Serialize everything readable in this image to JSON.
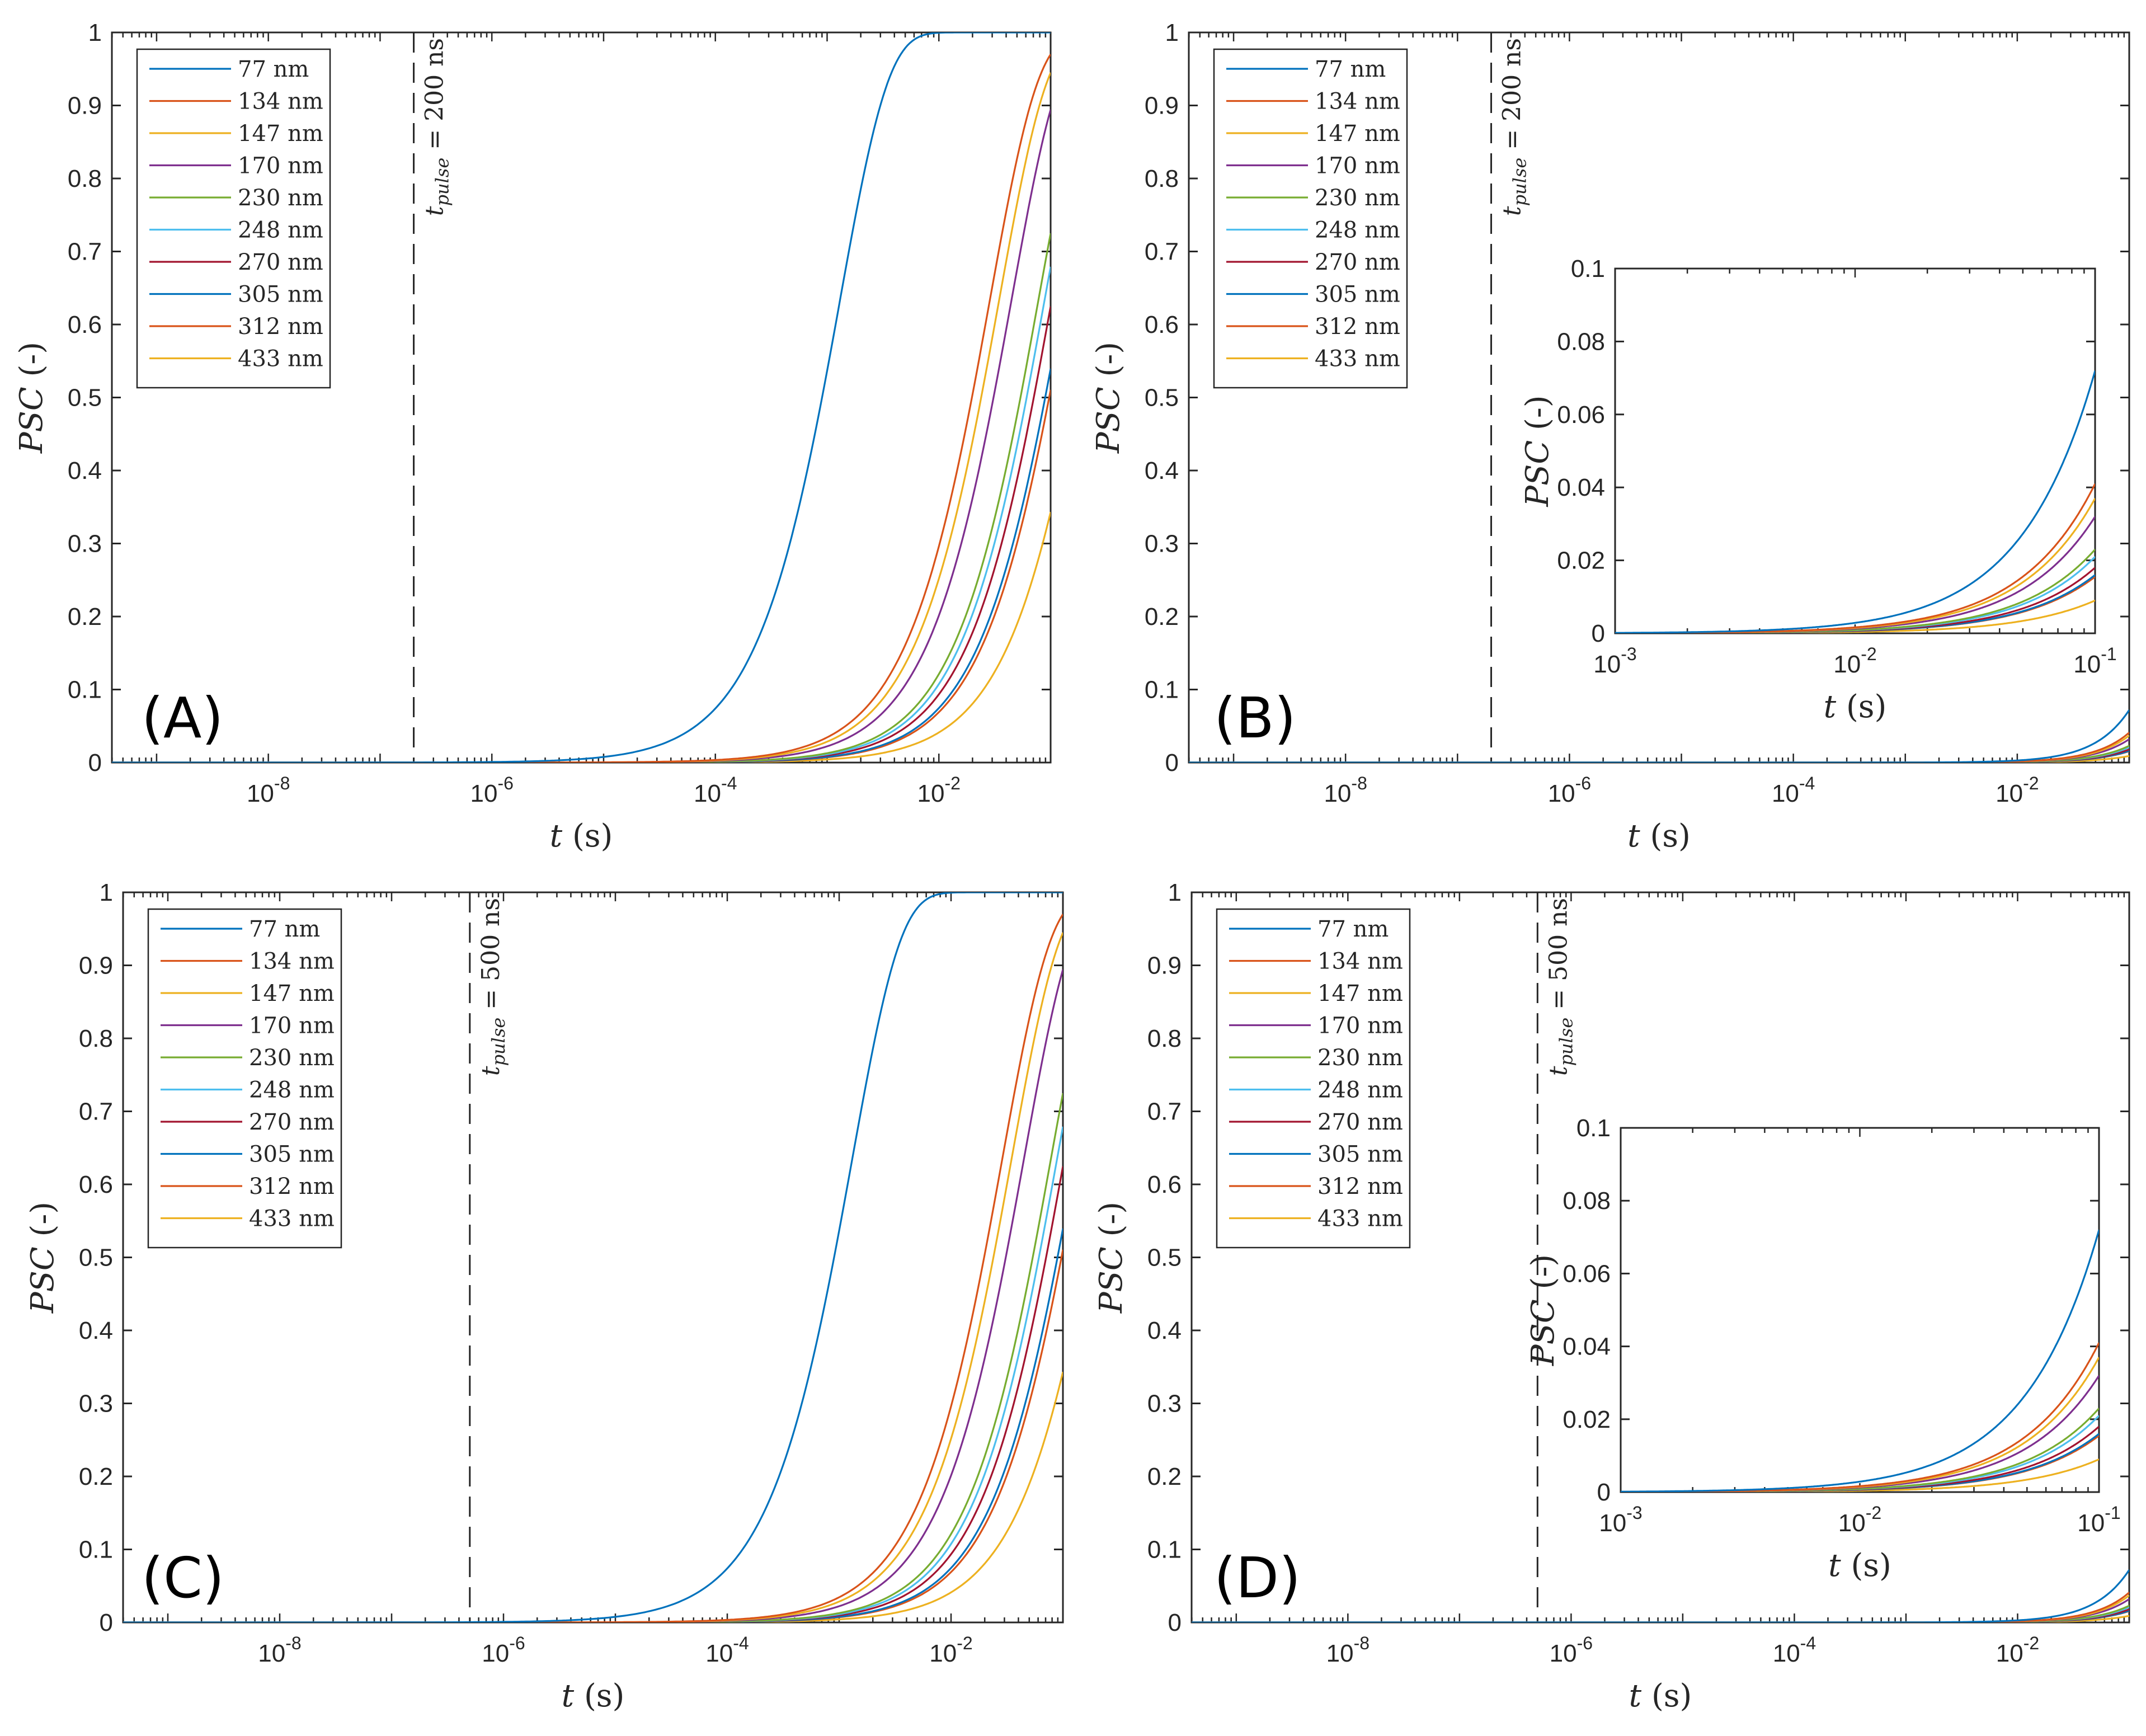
{
  "chart_data": [
    {
      "type": "line",
      "panel": "(A)",
      "xscale": "log",
      "xlim_exp": [
        -9.4,
        -1
      ],
      "ylim": [
        0,
        1
      ],
      "xlabel": "t (s)",
      "ylabel": "PSC (-)",
      "yticks": [
        0,
        0.1,
        0.2,
        0.3,
        0.4,
        0.5,
        0.6,
        0.7,
        0.8,
        0.9,
        1
      ],
      "xtick_exponents": [
        -8,
        -6,
        -4,
        -2
      ],
      "legend_position": "top-left",
      "pulse": {
        "label": "t_pulse = 200 ns",
        "sub": "pulse",
        "value_text": "200 ns",
        "t_seconds": 2e-07
      },
      "model": "PSC(t) = 1 - exp(-t / tau); tau listed per series in seconds",
      "series": [
        {
          "name": "77 nm",
          "tau": 0.0013,
          "color": "#0072BD"
        },
        {
          "name": "134 nm",
          "tau": 0.0285,
          "color": "#D95319"
        },
        {
          "name": "147 nm",
          "tau": 0.0345,
          "color": "#EDB120"
        },
        {
          "name": "170 nm",
          "tau": 0.0445,
          "color": "#7E2F8E"
        },
        {
          "name": "230 nm",
          "tau": 0.0775,
          "color": "#77AC30"
        },
        {
          "name": "248 nm",
          "tau": 0.088,
          "color": "#4DBEEE"
        },
        {
          "name": "270 nm",
          "tau": 0.102,
          "color": "#A2142F"
        },
        {
          "name": "305 nm",
          "tau": 0.129,
          "color": "#0072BD"
        },
        {
          "name": "312 nm",
          "tau": 0.14,
          "color": "#D95319"
        },
        {
          "name": "433 nm",
          "tau": 0.238,
          "color": "#EDB120"
        }
      ]
    },
    {
      "type": "line",
      "panel": "(B)",
      "xscale": "log",
      "xlim_exp": [
        -9.4,
        -1
      ],
      "ylim": [
        0,
        1
      ],
      "xlabel": "t (s)",
      "ylabel": "PSC (-)",
      "yticks": [
        0,
        0.1,
        0.2,
        0.3,
        0.4,
        0.5,
        0.6,
        0.7,
        0.8,
        0.9,
        1
      ],
      "xtick_exponents": [
        -8,
        -6,
        -4,
        -2
      ],
      "legend_position": "top-left",
      "pulse": {
        "label": "t_pulse = 200 ns",
        "sub": "pulse",
        "value_text": "200 ns",
        "t_seconds": 2e-07
      },
      "model": "PSC(t) = (t / 0.1)^1.4 * final_value; final_value listed per series",
      "series": [
        {
          "name": "77 nm",
          "final": 0.072,
          "color": "#0072BD"
        },
        {
          "name": "134 nm",
          "final": 0.041,
          "color": "#D95319"
        },
        {
          "name": "147 nm",
          "final": 0.037,
          "color": "#EDB120"
        },
        {
          "name": "170 nm",
          "final": 0.032,
          "color": "#7E2F8E"
        },
        {
          "name": "230 nm",
          "final": 0.023,
          "color": "#77AC30"
        },
        {
          "name": "248 nm",
          "final": 0.021,
          "color": "#4DBEEE"
        },
        {
          "name": "270 nm",
          "final": 0.018,
          "color": "#A2142F"
        },
        {
          "name": "305 nm",
          "final": 0.016,
          "color": "#0072BD"
        },
        {
          "name": "312 nm",
          "final": 0.0155,
          "color": "#D95319"
        },
        {
          "name": "433 nm",
          "final": 0.009,
          "color": "#EDB120"
        }
      ],
      "inset": {
        "xscale": "log",
        "xlim_exp": [
          -3,
          -1
        ],
        "ylim": [
          0,
          0.1
        ],
        "yticks": [
          0,
          0.02,
          0.04,
          0.06,
          0.08,
          0.1
        ],
        "xtick_exponents": [
          -3,
          -2,
          -1
        ],
        "xlabel": "t (s)",
        "ylabel": "PSC (-)"
      }
    },
    {
      "type": "line",
      "panel": "(C)",
      "xscale": "log",
      "xlim_exp": [
        -9.4,
        -1
      ],
      "ylim": [
        0,
        1
      ],
      "xlabel": "t (s)",
      "ylabel": "PSC (-)",
      "yticks": [
        0,
        0.1,
        0.2,
        0.3,
        0.4,
        0.5,
        0.6,
        0.7,
        0.8,
        0.9,
        1
      ],
      "xtick_exponents": [
        -8,
        -6,
        -4,
        -2
      ],
      "legend_position": "top-left",
      "pulse": {
        "label": "t_pulse = 500 ns",
        "sub": "pulse",
        "value_text": "500 ns",
        "t_seconds": 5e-07
      },
      "model": "PSC(t) = 1 - exp(-t / tau); tau listed per series in seconds",
      "series": [
        {
          "name": "77 nm",
          "tau": 0.0013,
          "color": "#0072BD"
        },
        {
          "name": "134 nm",
          "tau": 0.0285,
          "color": "#D95319"
        },
        {
          "name": "147 nm",
          "tau": 0.0345,
          "color": "#EDB120"
        },
        {
          "name": "170 nm",
          "tau": 0.0445,
          "color": "#7E2F8E"
        },
        {
          "name": "230 nm",
          "tau": 0.0775,
          "color": "#77AC30"
        },
        {
          "name": "248 nm",
          "tau": 0.088,
          "color": "#4DBEEE"
        },
        {
          "name": "270 nm",
          "tau": 0.102,
          "color": "#A2142F"
        },
        {
          "name": "305 nm",
          "tau": 0.129,
          "color": "#0072BD"
        },
        {
          "name": "312 nm",
          "tau": 0.14,
          "color": "#D95319"
        },
        {
          "name": "433 nm",
          "tau": 0.238,
          "color": "#EDB120"
        }
      ]
    },
    {
      "type": "line",
      "panel": "(D)",
      "xscale": "log",
      "xlim_exp": [
        -9.4,
        -1
      ],
      "ylim": [
        0,
        1
      ],
      "xlabel": "t (s)",
      "ylabel": "PSC (-)",
      "yticks": [
        0,
        0.1,
        0.2,
        0.3,
        0.4,
        0.5,
        0.6,
        0.7,
        0.8,
        0.9,
        1
      ],
      "xtick_exponents": [
        -8,
        -6,
        -4,
        -2
      ],
      "legend_position": "top-left",
      "pulse": {
        "label": "t_pulse = 500 ns",
        "sub": "pulse",
        "value_text": "500 ns",
        "t_seconds": 5e-07
      },
      "model": "PSC(t) = (t / 0.1)^1.4 * final_value; final_value listed per series",
      "series": [
        {
          "name": "77 nm",
          "final": 0.072,
          "color": "#0072BD"
        },
        {
          "name": "134 nm",
          "final": 0.041,
          "color": "#D95319"
        },
        {
          "name": "147 nm",
          "final": 0.037,
          "color": "#EDB120"
        },
        {
          "name": "170 nm",
          "final": 0.032,
          "color": "#7E2F8E"
        },
        {
          "name": "230 nm",
          "final": 0.023,
          "color": "#77AC30"
        },
        {
          "name": "248 nm",
          "final": 0.021,
          "color": "#4DBEEE"
        },
        {
          "name": "270 nm",
          "final": 0.018,
          "color": "#A2142F"
        },
        {
          "name": "305 nm",
          "final": 0.016,
          "color": "#0072BD"
        },
        {
          "name": "312 nm",
          "final": 0.0155,
          "color": "#D95319"
        },
        {
          "name": "433 nm",
          "final": 0.009,
          "color": "#EDB120"
        }
      ],
      "inset": {
        "xscale": "log",
        "xlim_exp": [
          -3,
          -1
        ],
        "ylim": [
          0,
          0.1
        ],
        "yticks": [
          0,
          0.02,
          0.04,
          0.06,
          0.08,
          0.1
        ],
        "xtick_exponents": [
          -3,
          -2,
          -1
        ],
        "xlabel": "t (s)",
        "ylabel": "PSC (-)"
      }
    }
  ]
}
